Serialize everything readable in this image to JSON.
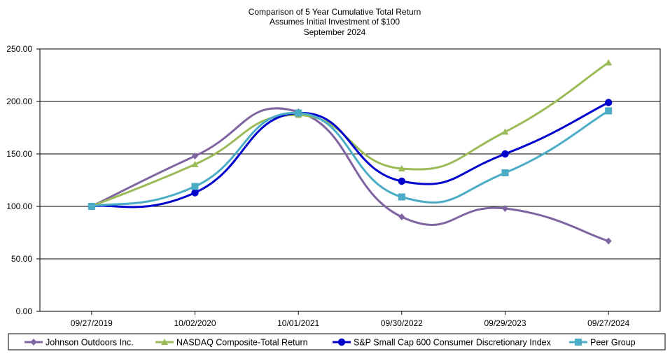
{
  "chart_data": {
    "type": "line",
    "title_lines": [
      "Comparison of 5 Year Cumulative Total Return",
      "Assumes Initial Investment of $100",
      "September 2024"
    ],
    "categories": [
      "09/27/2019",
      "10/02/2020",
      "10/01/2021",
      "09/30/2022",
      "09/29/2023",
      "09/27/2024"
    ],
    "ylim": [
      0,
      250
    ],
    "yticks": [
      0,
      50,
      100,
      150,
      200,
      250
    ],
    "ytick_labels": [
      "0.00",
      "50.00",
      "100.00",
      "150.00",
      "200.00",
      "250.00"
    ],
    "grid": "horizontal",
    "legend_position": "bottom",
    "series": [
      {
        "name": "Johnson Outdoors Inc.",
        "color": "#8064A2",
        "marker": "diamond",
        "values": [
          100,
          148,
          190,
          90,
          98,
          67
        ]
      },
      {
        "name": "NASDAQ Composite-Total Return",
        "color": "#9BBB59",
        "marker": "triangle",
        "values": [
          100,
          140,
          187,
          136,
          171,
          237
        ]
      },
      {
        "name": "S&P Small Cap 600 Consumer Discretionary Index",
        "color": "#0000CC",
        "marker": "circle",
        "values": [
          100,
          113,
          189,
          124,
          150,
          199
        ]
      },
      {
        "name": "Peer Group",
        "color": "#4BACC6",
        "marker": "square",
        "values": [
          100,
          119,
          189,
          109,
          132,
          191
        ]
      }
    ]
  }
}
